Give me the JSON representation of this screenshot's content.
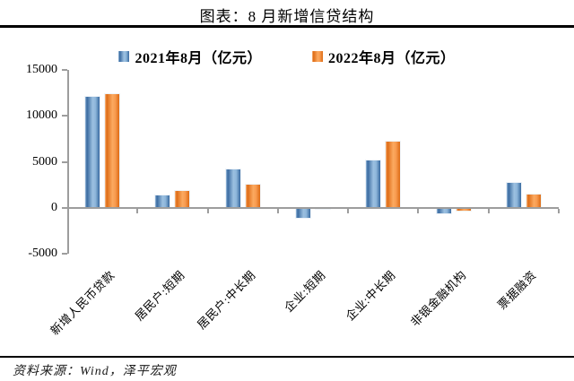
{
  "title": "图表：8 月新增信贷结构",
  "source": "资料来源：Wind，泽平宏观",
  "chart_data": {
    "type": "bar",
    "title": "图表：8 月新增信贷结构",
    "categories": [
      "新增人民币贷款",
      "居民户:短期",
      "居民户:中长期",
      "企业:短期",
      "企业:中长期",
      "非银金融机构",
      "票据融资"
    ],
    "series": [
      {
        "name": "2021年8月（亿元）",
        "color": "#4e81bd",
        "values": [
          12200,
          1496,
          4259,
          -1149,
          5215,
          -681,
          2813
        ]
      },
      {
        "name": "2022年8月（亿元）",
        "color": "#f07f24",
        "values": [
          12500,
          1922,
          2658,
          -121,
          7353,
          -425,
          1591
        ]
      }
    ],
    "xlabel": "",
    "ylabel": "",
    "ylim": [
      -5000,
      15000
    ],
    "yticks": [
      15000,
      10000,
      5000,
      0,
      -5000
    ],
    "grid": false,
    "legend_position": "top",
    "axis_color": "#9d9d9d"
  }
}
